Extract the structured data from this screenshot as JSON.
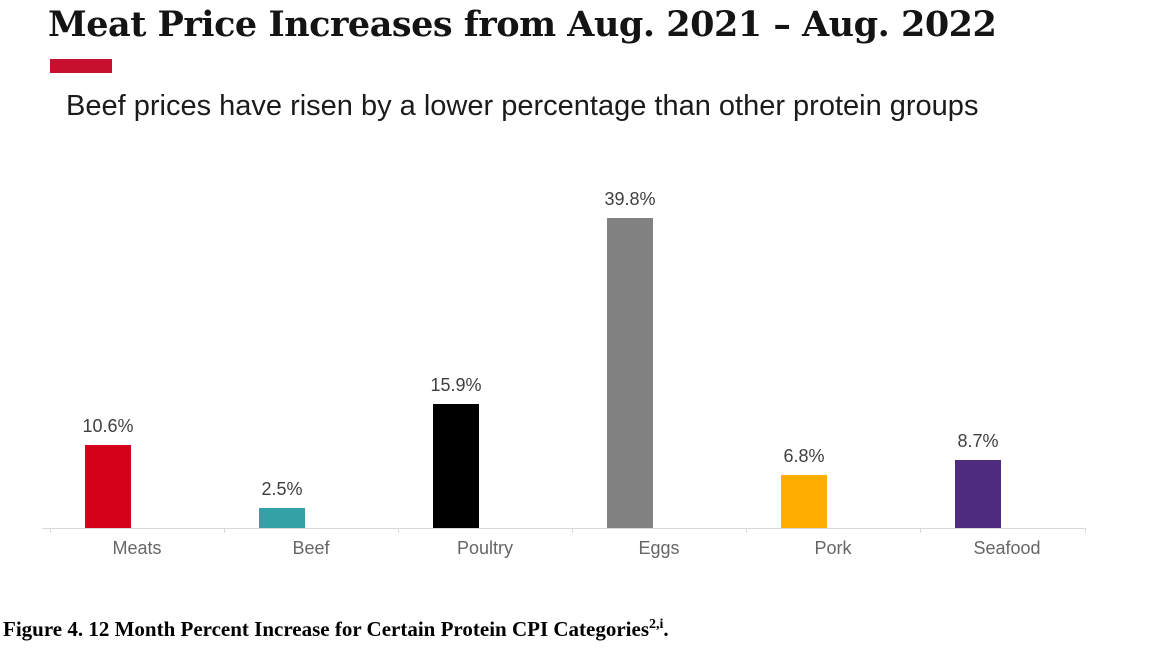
{
  "header": {
    "title": "Meat Price Increases from Aug. 2021 – Aug. 2022",
    "subtitle": "Beef prices have risen by a lower percentage than other protein groups",
    "accent_color": "#C8102E"
  },
  "chart_data": {
    "type": "bar",
    "title": "Meat Price Increases from Aug. 2021 – Aug. 2022",
    "subtitle": "Beef prices have risen by a lower percentage than other protein groups",
    "categories": [
      "Meats",
      "Beef",
      "Poultry",
      "Eggs",
      "Pork",
      "Seafood"
    ],
    "values": [
      10.6,
      2.5,
      15.9,
      39.8,
      6.8,
      8.7
    ],
    "value_labels": [
      "10.6%",
      "2.5%",
      "15.9%",
      "39.8%",
      "6.8%",
      "8.7%"
    ],
    "bar_colors": [
      "#D40019",
      "#33A1A6",
      "#000000",
      "#828282",
      "#FFAD00",
      "#4F2C7F"
    ],
    "xlabel": "",
    "ylabel": "",
    "ylim": [
      0,
      42
    ],
    "grid": false,
    "legend": "none",
    "data_labels": "outside-end",
    "axis_line_color": "#D9D9D9",
    "value_label_color": "#3f3f3f",
    "category_label_color": "#666666"
  },
  "caption": {
    "text": "Figure 4. 12 Month Percent Increase for Certain Protein CPI Categories",
    "superscript": "2,i",
    "suffix": "."
  }
}
